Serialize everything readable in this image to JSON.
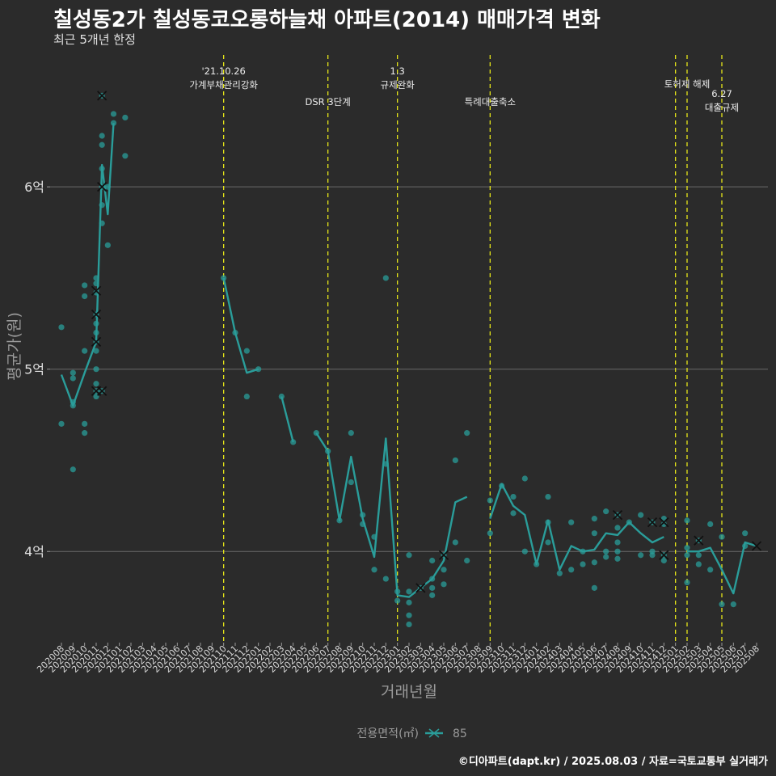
{
  "header": {
    "title": "칠성동2가 칠성동코오롱하늘채 아파트(2014) 매매가격 변화",
    "subtitle": "최근 5개년 한정"
  },
  "footer": {
    "caption": "©디아파트(dapt.kr) / 2025.08.03 / 자료=국토교통부 실거래가"
  },
  "colors": {
    "background": "#2b2b2b",
    "series": "#2a9d9a",
    "event_line": "#e6e619",
    "grid": "#6a6a6a",
    "text": "#e0e0e0"
  },
  "chart_data": {
    "type": "line",
    "xlabel": "거래년월",
    "ylabel": "평균가(원)",
    "ylim": [
      3.5,
      6.75
    ],
    "yticks": [
      {
        "v": 4,
        "label": "4억"
      },
      {
        "v": 5,
        "label": "5억"
      },
      {
        "v": 6,
        "label": "6억"
      }
    ],
    "categories": [
      "202008",
      "202009",
      "202010",
      "202011",
      "202012",
      "202101",
      "202102",
      "202103",
      "202104",
      "202105",
      "202106",
      "202107",
      "202108",
      "202109",
      "202110",
      "202111",
      "202112",
      "202201",
      "202202",
      "202203",
      "202204",
      "202205",
      "202206",
      "202207",
      "202208",
      "202209",
      "202210",
      "202211",
      "202212",
      "202301",
      "202302",
      "202303",
      "202304",
      "202305",
      "202306",
      "202307",
      "202308",
      "202309",
      "202310",
      "202311",
      "202312",
      "202401",
      "202402",
      "202403",
      "202404",
      "202405",
      "202406",
      "202407",
      "202408",
      "202409",
      "202410",
      "202411",
      "202412",
      "202501",
      "202502",
      "202503",
      "202504",
      "202505",
      "202506",
      "202507",
      "202508"
    ],
    "legend": {
      "title": "전용면적(㎡)",
      "position": "bottom"
    },
    "series": [
      {
        "name": "85"
      }
    ],
    "mean_line": [
      {
        "x": 0,
        "y": 4.97
      },
      {
        "x": 1,
        "y": 4.8
      },
      {
        "x": 2,
        "y": 4.98
      },
      {
        "x": 3,
        "y": 5.15
      },
      {
        "x": 3.5,
        "y": 6.12
      },
      {
        "x": 4,
        "y": 5.85
      },
      {
        "x": 4.5,
        "y": 6.35
      },
      null,
      {
        "x": 14,
        "y": 5.5
      },
      {
        "x": 15,
        "y": 5.2
      },
      {
        "x": 16,
        "y": 4.98
      },
      {
        "x": 17,
        "y": 5.0
      },
      null,
      {
        "x": 19,
        "y": 4.85
      },
      {
        "x": 20,
        "y": 4.6
      },
      null,
      {
        "x": 22,
        "y": 4.65
      },
      {
        "x": 23,
        "y": 4.55
      },
      {
        "x": 24,
        "y": 4.17
      },
      {
        "x": 25,
        "y": 4.52
      },
      {
        "x": 26,
        "y": 4.18
      },
      {
        "x": 27,
        "y": 3.97
      },
      {
        "x": 28,
        "y": 4.62
      },
      {
        "x": 29,
        "y": 3.76
      },
      {
        "x": 30,
        "y": 3.75
      },
      {
        "x": 31,
        "y": 3.8
      },
      {
        "x": 32,
        "y": 3.85
      },
      {
        "x": 33,
        "y": 3.95
      },
      {
        "x": 34,
        "y": 4.27
      },
      {
        "x": 35,
        "y": 4.3
      },
      null,
      {
        "x": 37,
        "y": 4.18
      },
      {
        "x": 38,
        "y": 4.37
      },
      {
        "x": 39,
        "y": 4.25
      },
      {
        "x": 40,
        "y": 4.2
      },
      {
        "x": 41,
        "y": 3.93
      },
      {
        "x": 42,
        "y": 4.17
      },
      {
        "x": 43,
        "y": 3.9
      },
      {
        "x": 44,
        "y": 4.03
      },
      {
        "x": 45,
        "y": 4.0
      },
      {
        "x": 46,
        "y": 4.01
      },
      {
        "x": 47,
        "y": 4.1
      },
      {
        "x": 48,
        "y": 4.09
      },
      {
        "x": 49,
        "y": 4.16
      },
      {
        "x": 50,
        "y": 4.1
      },
      {
        "x": 51,
        "y": 4.05
      },
      {
        "x": 52,
        "y": 4.08
      },
      null,
      {
        "x": 54,
        "y": 4.0
      },
      {
        "x": 55,
        "y": 4.0
      },
      {
        "x": 56,
        "y": 4.02
      },
      {
        "x": 57,
        "y": 3.9
      },
      {
        "x": 58,
        "y": 3.77
      },
      {
        "x": 59,
        "y": 4.05
      },
      {
        "x": 60,
        "y": 4.03
      }
    ],
    "points": [
      [
        0,
        5.23
      ],
      [
        0,
        4.7
      ],
      [
        1,
        4.98
      ],
      [
        1,
        4.95
      ],
      [
        1,
        4.82
      ],
      [
        1,
        4.8
      ],
      [
        1,
        4.45
      ],
      [
        2,
        5.46
      ],
      [
        2,
        5.4
      ],
      [
        2,
        5.1
      ],
      [
        2,
        4.7
      ],
      [
        2,
        4.65
      ],
      [
        3,
        5.5
      ],
      [
        3,
        5.47
      ],
      [
        3,
        5.42
      ],
      [
        3,
        5.3
      ],
      [
        3,
        5.25
      ],
      [
        3,
        5.2
      ],
      [
        3,
        5.15
      ],
      [
        3,
        5.1
      ],
      [
        3,
        5.0
      ],
      [
        3,
        4.92
      ],
      [
        3,
        4.88
      ],
      [
        3,
        4.85
      ],
      [
        3.5,
        6.5
      ],
      [
        3.5,
        6.28
      ],
      [
        3.5,
        6.23
      ],
      [
        3.5,
        6.1
      ],
      [
        3.5,
        6.0
      ],
      [
        3.5,
        5.9
      ],
      [
        3.5,
        5.8
      ],
      [
        3.5,
        4.88
      ],
      [
        4,
        6.0
      ],
      [
        4,
        5.68
      ],
      [
        4.5,
        6.4
      ],
      [
        4.5,
        6.35
      ],
      [
        5.5,
        6.38
      ],
      [
        5.5,
        6.17
      ],
      [
        14,
        5.5
      ],
      [
        15,
        5.2
      ],
      [
        16,
        5.1
      ],
      [
        16,
        4.85
      ],
      [
        17,
        5.0
      ],
      [
        19,
        4.85
      ],
      [
        20,
        4.6
      ],
      [
        22,
        4.65
      ],
      [
        23,
        4.55
      ],
      [
        24,
        4.17
      ],
      [
        25,
        4.65
      ],
      [
        25,
        4.38
      ],
      [
        26,
        4.2
      ],
      [
        26,
        4.15
      ],
      [
        27,
        4.08
      ],
      [
        27,
        3.9
      ],
      [
        28,
        5.5
      ],
      [
        28,
        4.48
      ],
      [
        28,
        3.85
      ],
      [
        29,
        3.78
      ],
      [
        29,
        3.73
      ],
      [
        30,
        3.98
      ],
      [
        30,
        3.78
      ],
      [
        30,
        3.72
      ],
      [
        30,
        3.65
      ],
      [
        30,
        3.6
      ],
      [
        31,
        3.8
      ],
      [
        32,
        3.95
      ],
      [
        32,
        3.85
      ],
      [
        32,
        3.8
      ],
      [
        32,
        3.76
      ],
      [
        33,
        3.98
      ],
      [
        33,
        3.9
      ],
      [
        33,
        3.82
      ],
      [
        34,
        4.5
      ],
      [
        34,
        4.05
      ],
      [
        35,
        4.65
      ],
      [
        35,
        3.95
      ],
      [
        37,
        4.28
      ],
      [
        37,
        4.1
      ],
      [
        38,
        4.36
      ],
      [
        39,
        4.3
      ],
      [
        39,
        4.21
      ],
      [
        40,
        4.4
      ],
      [
        40,
        4.0
      ],
      [
        41,
        3.93
      ],
      [
        42,
        4.3
      ],
      [
        42,
        4.16
      ],
      [
        42,
        4.05
      ],
      [
        43,
        3.88
      ],
      [
        44,
        4.16
      ],
      [
        44,
        3.9
      ],
      [
        45,
        4.0
      ],
      [
        45,
        3.93
      ],
      [
        46,
        4.18
      ],
      [
        46,
        4.1
      ],
      [
        46,
        3.94
      ],
      [
        46,
        3.8
      ],
      [
        47,
        4.22
      ],
      [
        47,
        4.0
      ],
      [
        47,
        3.97
      ],
      [
        48,
        4.2
      ],
      [
        48,
        4.13
      ],
      [
        48,
        4.05
      ],
      [
        48,
        4.0
      ],
      [
        48,
        3.96
      ],
      [
        49,
        4.16
      ],
      [
        50,
        4.2
      ],
      [
        50,
        3.98
      ],
      [
        51,
        4.16
      ],
      [
        51,
        4.0
      ],
      [
        51,
        3.98
      ],
      [
        52,
        4.18
      ],
      [
        52,
        4.15
      ],
      [
        52,
        3.98
      ],
      [
        52,
        3.95
      ],
      [
        54,
        4.17
      ],
      [
        54,
        4.02
      ],
      [
        54,
        3.98
      ],
      [
        54,
        3.83
      ],
      [
        55,
        4.06
      ],
      [
        55,
        3.98
      ],
      [
        55,
        3.93
      ],
      [
        56,
        4.15
      ],
      [
        56,
        3.9
      ],
      [
        57,
        4.08
      ],
      [
        57,
        3.71
      ],
      [
        58,
        3.71
      ],
      [
        59,
        4.1
      ],
      [
        59,
        4.03
      ]
    ],
    "x_markers": [
      [
        3,
        5.3
      ],
      [
        3,
        5.15
      ],
      [
        3,
        4.88
      ],
      [
        3,
        5.43
      ],
      [
        3.5,
        6.5
      ],
      [
        3.5,
        6.0
      ],
      [
        3.5,
        4.88
      ],
      [
        31,
        3.8
      ],
      [
        33,
        3.98
      ],
      [
        48,
        4.2
      ],
      [
        51,
        4.16
      ],
      [
        52,
        4.16
      ],
      [
        52,
        3.98
      ],
      [
        55,
        4.06
      ],
      [
        60,
        4.03
      ]
    ],
    "events": [
      {
        "x": 14,
        "lines": [
          "'21.10.26",
          "가계부채관리강화"
        ],
        "level": 0
      },
      {
        "x": 23,
        "lines": [
          "DSR 3단계"
        ],
        "level": 2
      },
      {
        "x": 29,
        "lines": [
          "1.3",
          "규제완화"
        ],
        "level": 0
      },
      {
        "x": 37,
        "lines": [
          "특례대출축소"
        ],
        "level": 2
      },
      {
        "x": 53,
        "lines": [],
        "level": 0
      },
      {
        "x": 54,
        "lines": [
          "토허제 해제"
        ],
        "level": 1
      },
      {
        "x": 57,
        "lines": [
          "6.27",
          "대출규제"
        ],
        "level": 3
      }
    ]
  }
}
